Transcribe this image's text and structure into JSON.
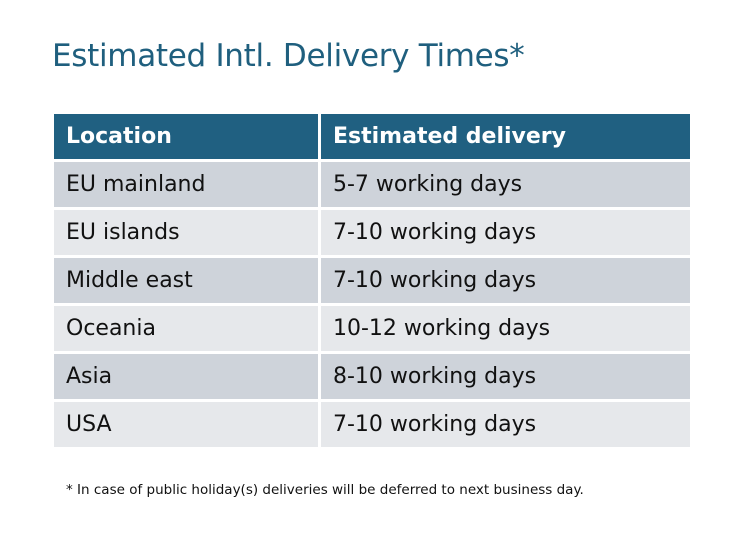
{
  "title": "Estimated Intl. Delivery Times*",
  "table": {
    "headers": [
      "Location",
      "Estimated delivery"
    ],
    "rows": [
      [
        "EU mainland",
        "5-7 working days"
      ],
      [
        "EU islands",
        "7-10 working days"
      ],
      [
        "Middle east",
        "7-10 working days"
      ],
      [
        "Oceania",
        "10-12 working days"
      ],
      [
        "Asia",
        "8-10 working days"
      ],
      [
        "USA",
        "7-10 working days"
      ]
    ]
  },
  "footnote": "* In case of public holiday(s) deliveries will be deferred to next business day.",
  "colors": {
    "header": "#206081",
    "title": "#1f5f7e",
    "row_odd": "#ced3da",
    "row_even": "#e6e8eb"
  }
}
